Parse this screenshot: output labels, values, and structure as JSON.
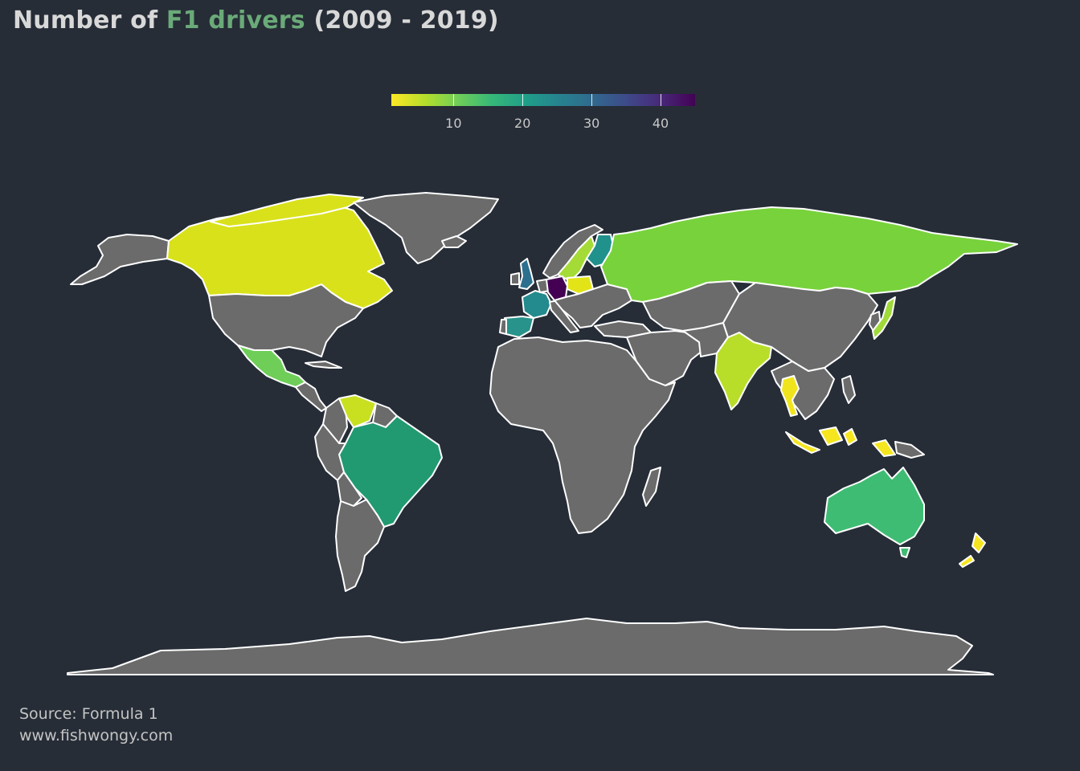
{
  "title": {
    "prefix": "Number of ",
    "highlight": "F1 drivers",
    "suffix": " (2009 - 2019)",
    "highlight_color": "#6aaa78"
  },
  "legend": {
    "min": 1,
    "max": 45,
    "ticks": [
      "10",
      "20",
      "30",
      "40"
    ],
    "tick_values": [
      10,
      20,
      30,
      40
    ],
    "palette": [
      "#fde725",
      "#b5de2b",
      "#6ece58",
      "#35b779",
      "#1f9e89",
      "#26828e",
      "#31688e",
      "#3e4989",
      "#482878",
      "#440154"
    ]
  },
  "map": {
    "no_data_color": "#6b6b6b",
    "border_color": "#ffffff",
    "countries": [
      {
        "name": "Canada",
        "value": 3,
        "color": "#d9e11a"
      },
      {
        "name": "USA",
        "value": null,
        "color": "#6b6b6b"
      },
      {
        "name": "Mexico",
        "value": 11,
        "color": "#6ece58"
      },
      {
        "name": "Venezuela",
        "value": 4,
        "color": "#c8e020"
      },
      {
        "name": "Brazil",
        "value": 20,
        "color": "#229a71"
      },
      {
        "name": "UK",
        "value": 27,
        "color": "#2c708e"
      },
      {
        "name": "France",
        "value": 24,
        "color": "#238a8d"
      },
      {
        "name": "Spain",
        "value": 20,
        "color": "#27938a"
      },
      {
        "name": "Germany",
        "value": 45,
        "color": "#440154"
      },
      {
        "name": "Sweden",
        "value": 6,
        "color": "#a5db36"
      },
      {
        "name": "Finland",
        "value": 20,
        "color": "#21918c"
      },
      {
        "name": "Poland",
        "value": 3,
        "color": "#e2e418"
      },
      {
        "name": "Russia",
        "value": 9,
        "color": "#78d23c"
      },
      {
        "name": "India",
        "value": 5,
        "color": "#b8de29"
      },
      {
        "name": "Thailand",
        "value": 2,
        "color": "#f0e51d"
      },
      {
        "name": "Indonesia",
        "value": 2,
        "color": "#f5e61f"
      },
      {
        "name": "Japan",
        "value": 6,
        "color": "#a0da39"
      },
      {
        "name": "Australia",
        "value": 13,
        "color": "#3fbc73"
      },
      {
        "name": "New Zealand",
        "value": 2,
        "color": "#f5e61f"
      }
    ]
  },
  "source": {
    "line1": "Source: Formula 1",
    "line2": "www.fishwongy.com"
  }
}
